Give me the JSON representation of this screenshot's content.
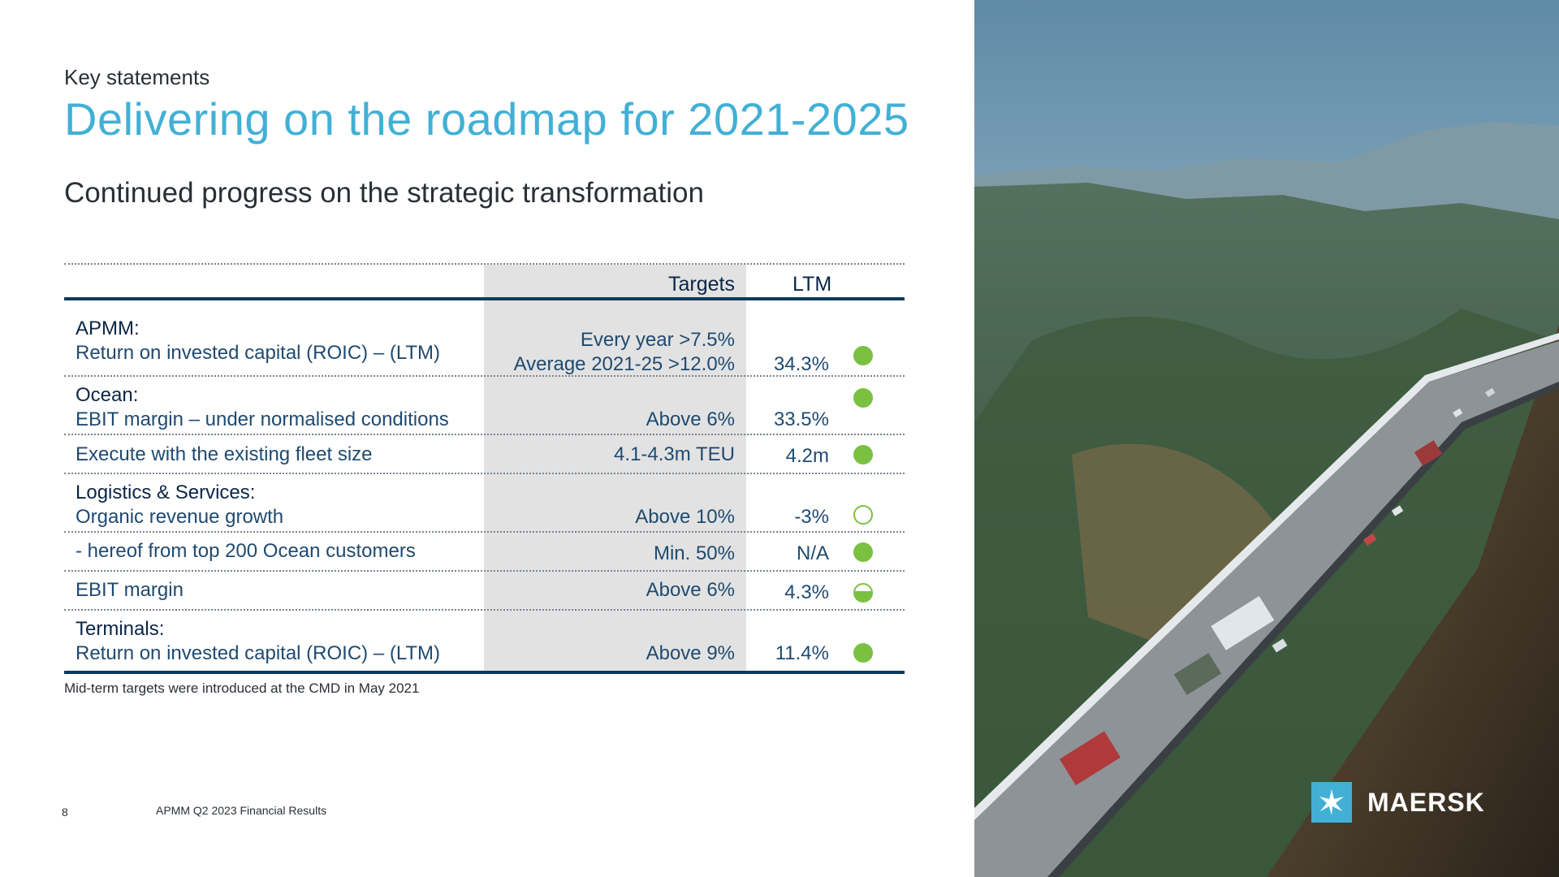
{
  "header": {
    "eyebrow": "Key statements",
    "title": "Delivering on the roadmap for 2021-2025",
    "subtitle": "Continued progress on the strategic transformation"
  },
  "table": {
    "col_targets": "Targets",
    "col_ltm": "LTM",
    "rows": [
      {
        "category": "APMM:",
        "label": "Return on invested capital (ROIC) – (LTM)",
        "target_line1": "Every year >7.5%",
        "target_line2": "Average 2021-25 >12.0%",
        "ltm": "34.3%",
        "status": "full"
      },
      {
        "category": "Ocean:",
        "label": "EBIT margin – under normalised conditions",
        "target": "Above 6%",
        "ltm": "33.5%",
        "status": "full"
      },
      {
        "label": "Execute with the existing fleet size",
        "target": "4.1-4.3m TEU",
        "ltm": "4.2m",
        "status": "full"
      },
      {
        "category": "Logistics & Services:",
        "label": "Organic revenue growth",
        "target": "Above 10%",
        "ltm": "-3%",
        "status": "empty"
      },
      {
        "label": "- hereof from top 200 Ocean customers",
        "target": "Min. 50%",
        "ltm": "N/A",
        "status": "full"
      },
      {
        "label": "EBIT margin",
        "target": "Above 6%",
        "ltm": "4.3%",
        "status": "half"
      },
      {
        "category": "Terminals:",
        "label": "Return on invested capital (ROIC) – (LTM)",
        "target": "Above 9%",
        "ltm": "11.4%",
        "status": "full"
      }
    ]
  },
  "footnote": "Mid-term targets were introduced at the CMD in May 2021",
  "footer": {
    "page_number": "8",
    "report_name": "APMM Q2 2023 Financial Results"
  },
  "brand": {
    "logo_text": "MAERSK",
    "accent_color": "#42b0d5",
    "status_color": "#7ac142"
  }
}
